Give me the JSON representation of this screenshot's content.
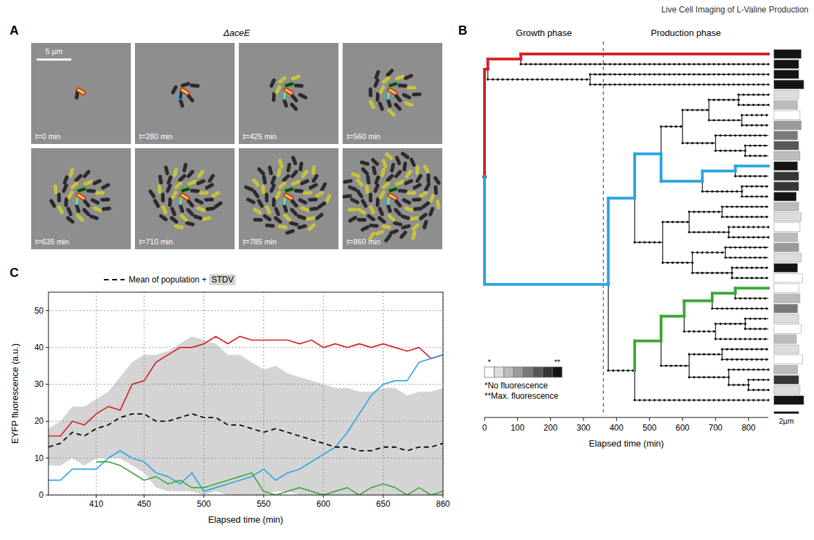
{
  "header": {
    "title": "Live Cell Imaging of L-Valine Production"
  },
  "panel_a": {
    "letter": "A",
    "title": "ΔaceE",
    "scale_bar": {
      "value": 5,
      "label": "5 µm"
    },
    "frames": [
      {
        "time": 0,
        "label": "t=0 min"
      },
      {
        "time": 280,
        "label": "t=280 min"
      },
      {
        "time": 425,
        "label": "t=425 min"
      },
      {
        "time": 560,
        "label": "t=560 min"
      },
      {
        "time": 635,
        "label": "t=635 min"
      },
      {
        "time": 710,
        "label": "t=710 min"
      },
      {
        "time": 785,
        "label": "t=785 min"
      },
      {
        "time": 860,
        "label": "t=860 min"
      }
    ]
  },
  "panel_b": {
    "letter": "B",
    "phases": [
      "Growth phase",
      "Production phase"
    ],
    "phase_boundary": 360,
    "x_label": "Elapsed time (min)",
    "xlim": [
      0,
      860
    ],
    "xticks": [
      0,
      100,
      200,
      300,
      400,
      500,
      600,
      700,
      800
    ],
    "fluorescence_scale": {
      "levels": [
        0,
        1,
        2,
        3,
        4,
        5,
        6,
        7
      ],
      "min_symbol": "*",
      "max_symbol": "**",
      "notes": [
        "*No fluorescence",
        "**Max. fluorescence"
      ]
    },
    "scale_bar": {
      "value": 2,
      "label": "2µm"
    },
    "tree": {
      "div": 0,
      "children": [
        {
          "div": 10,
          "color": "#d42027",
          "children": [
            {
              "div": 110,
              "color": "#d42027",
              "children": [
                {
                  "fluorescence": 7,
                  "length": 2.2,
                  "color": "#d42027"
                },
                {
                  "fluorescence": 7,
                  "length": 2.0
                }
              ]
            },
            {
              "div": 320,
              "children": [
                {
                  "fluorescence": 7,
                  "length": 2.0
                },
                {
                  "fluorescence": 7,
                  "length": 2.4
                }
              ]
            }
          ]
        },
        {
          "div": 375,
          "color": "#2aa5df",
          "children": [
            {
              "div": 455,
              "color": "#2aa5df",
              "children": [
                {
                  "div": 535,
                  "color": "#2aa5df",
                  "children": [
                    {
                      "div": 600,
                      "children": [
                        {
                          "div": 680,
                          "children": [
                            {
                              "div": 770,
                              "children": [
                                {
                                  "fluorescence": 1,
                                  "length": 2.0
                                },
                                {
                                  "fluorescence": 2,
                                  "length": 1.9
                                }
                              ]
                            },
                            {
                              "div": 780,
                              "children": [
                                {
                                  "fluorescence": 0,
                                  "length": 2.1
                                },
                                {
                                  "fluorescence": 3,
                                  "length": 2.2
                                }
                              ]
                            }
                          ]
                        },
                        {
                          "div": 700,
                          "children": [
                            {
                              "fluorescence": 4,
                              "length": 1.9
                            },
                            {
                              "div": 790,
                              "children": [
                                {
                                  "fluorescence": 5,
                                  "length": 2.0
                                },
                                {
                                  "fluorescence": 2,
                                  "length": 2.1
                                }
                              ]
                            }
                          ]
                        }
                      ]
                    },
                    {
                      "div": 660,
                      "color": "#2aa5df",
                      "children": [
                        {
                          "div": 760,
                          "color": "#2aa5df",
                          "children": [
                            {
                              "fluorescence": 7,
                              "length": 1.9,
                              "color": "#2aa5df"
                            },
                            {
                              "fluorescence": 6,
                              "length": 2.0
                            }
                          ]
                        },
                        {
                          "div": 780,
                          "children": [
                            {
                              "fluorescence": 6,
                              "length": 2.0
                            },
                            {
                              "fluorescence": 7,
                              "length": 1.8
                            }
                          ]
                        }
                      ]
                    }
                  ]
                },
                {
                  "div": 540,
                  "children": [
                    {
                      "div": 620,
                      "children": [
                        {
                          "div": 720,
                          "children": [
                            {
                              "fluorescence": 2,
                              "length": 2.0
                            },
                            {
                              "fluorescence": 1,
                              "length": 2.2
                            }
                          ]
                        },
                        {
                          "div": 740,
                          "children": [
                            {
                              "fluorescence": 0,
                              "length": 2.1
                            },
                            {
                              "fluorescence": 2,
                              "length": 1.9
                            }
                          ]
                        }
                      ]
                    },
                    {
                      "div": 630,
                      "children": [
                        {
                          "div": 730,
                          "children": [
                            {
                              "fluorescence": 3,
                              "length": 2.0
                            },
                            {
                              "fluorescence": 1,
                              "length": 2.2
                            }
                          ]
                        },
                        {
                          "div": 750,
                          "children": [
                            {
                              "fluorescence": 7,
                              "length": 1.9
                            },
                            {
                              "fluorescence": 0,
                              "length": 2.3
                            }
                          ]
                        }
                      ]
                    }
                  ]
                }
              ]
            },
            {
              "div": 455,
              "children": [
                {
                  "div": 535,
                  "color": "#3aa935",
                  "children": [
                    {
                      "div": 605,
                      "color": "#3aa935",
                      "children": [
                        {
                          "div": 690,
                          "color": "#3aa935",
                          "children": [
                            {
                              "div": 760,
                              "color": "#3aa935",
                              "children": [
                                {
                                  "fluorescence": 0,
                                  "length": 2.0,
                                  "color": "#3aa935"
                                },
                                {
                                  "fluorescence": 2,
                                  "length": 2.1
                                }
                              ]
                            },
                            {
                              "fluorescence": 4,
                              "length": 1.9
                            }
                          ]
                        },
                        {
                          "div": 700,
                          "children": [
                            {
                              "div": 790,
                              "children": [
                                {
                                  "fluorescence": 1,
                                  "length": 2.0
                                },
                                {
                                  "fluorescence": 0,
                                  "length": 2.2
                                }
                              ]
                            },
                            {
                              "fluorescence": 2,
                              "length": 1.8
                            }
                          ]
                        }
                      ]
                    },
                    {
                      "div": 620,
                      "children": [
                        {
                          "div": 720,
                          "children": [
                            {
                              "fluorescence": 1,
                              "length": 2.0
                            },
                            {
                              "fluorescence": 0,
                              "length": 2.3
                            }
                          ]
                        },
                        {
                          "div": 740,
                          "children": [
                            {
                              "fluorescence": 2,
                              "length": 1.9
                            },
                            {
                              "div": 800,
                              "children": [
                                {
                                  "fluorescence": 6,
                                  "length": 2.0
                                },
                                {
                                  "fluorescence": 1,
                                  "length": 2.1
                                }
                              ]
                            }
                          ]
                        }
                      ]
                    }
                  ]
                },
                {
                  "fluorescence": 7,
                  "length": 2.4
                }
              ]
            }
          ]
        }
      ]
    }
  },
  "panel_c": {
    "letter": "C"
  },
  "chart_data": {
    "type": "line",
    "x_label": "Elapsed time (min)",
    "y_label": "EYFP fluorescence (a.u.)",
    "categories": [
      null,
      null,
      null,
      null,
      "410",
      null,
      null,
      null,
      "450",
      null,
      null,
      null,
      null,
      "500",
      null,
      null,
      null,
      null,
      "550",
      null,
      null,
      null,
      null,
      "600",
      null,
      null,
      null,
      null,
      "650",
      null,
      null,
      null,
      null,
      "860"
    ],
    "series": [
      {
        "color": "#d42027",
        "values": [
          16,
          16,
          20,
          19,
          22,
          24,
          23,
          30,
          31,
          36,
          38,
          40,
          40,
          41,
          43,
          41,
          43,
          42,
          42,
          42,
          42,
          41,
          42,
          40,
          41,
          40,
          41,
          40,
          41,
          40,
          39,
          40,
          37,
          38
        ]
      },
      {
        "color": "#2aa5df",
        "values": [
          4,
          4,
          7,
          7,
          7,
          10,
          12,
          10,
          9,
          6,
          5,
          3,
          6,
          1,
          2,
          3,
          4,
          5,
          7,
          4,
          6,
          7,
          9,
          11,
          13,
          17,
          22,
          27,
          30,
          31,
          31,
          36,
          37,
          38
        ]
      },
      {
        "color": "#3aa935",
        "values": [
          null,
          null,
          null,
          null,
          9,
          9,
          8,
          6,
          4,
          5,
          3,
          4,
          2,
          2,
          3,
          4,
          5,
          6,
          1,
          0,
          1,
          2,
          1,
          0,
          1,
          2,
          0,
          2,
          3,
          2,
          0,
          2,
          0,
          1
        ]
      },
      {
        "name": "Mean of population +",
        "color": "#000000",
        "line_style": "dashed",
        "values": [
          13,
          14,
          17,
          16,
          18,
          19,
          21,
          22,
          22,
          20,
          20,
          21,
          22,
          21,
          21,
          19,
          19,
          18,
          17,
          18,
          17,
          16,
          15,
          14,
          13,
          13,
          12,
          12,
          13,
          13,
          12,
          13,
          13,
          14
        ],
        "stdv": [
          5,
          6,
          7,
          8,
          8,
          9,
          11,
          14,
          16,
          18,
          19,
          20,
          21,
          21,
          20,
          19,
          19,
          18,
          17,
          17,
          16,
          16,
          16,
          16,
          16,
          16,
          16,
          16,
          16,
          16,
          15,
          15,
          15,
          15
        ],
        "stdv_label": "STDV"
      }
    ],
    "ylim": [
      0,
      55
    ],
    "yticks": [
      0,
      10,
      20,
      30,
      40,
      50
    ],
    "grid": true,
    "legend": "top"
  }
}
